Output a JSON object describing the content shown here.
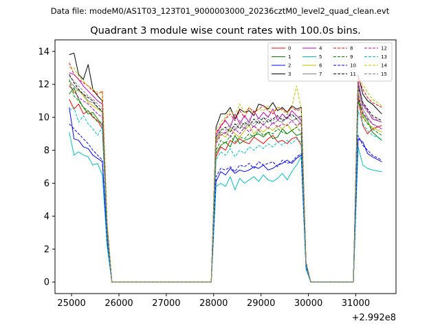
{
  "figure": {
    "suptitle": "Data file: modeM0/AS1T03_123T01_9000003000_20236cztM0_level2_quad_clean.evt"
  },
  "chart_data": {
    "type": "line",
    "title": "Quadrant 3 module wise count rates with 100.0s bins.",
    "xlabel": "",
    "ylabel": "",
    "x_offset_label": "+2.992e8",
    "xlim": [
      24650,
      31850
    ],
    "ylim": [
      -0.7,
      14.7
    ],
    "x_ticks": [
      25000,
      26000,
      27000,
      28000,
      29000,
      30000,
      31000
    ],
    "x_tick_labels": [
      "25000",
      "26000",
      "27000",
      "28000",
      "29000",
      "30000",
      "31000"
    ],
    "y_ticks": [
      0,
      2,
      4,
      6,
      8,
      10,
      12,
      14
    ],
    "y_tick_labels": [
      "0",
      "2",
      "4",
      "6",
      "8",
      "10",
      "12",
      "14"
    ],
    "grid": false,
    "legend_position": "top-right",
    "x": [
      24950,
      25050,
      25150,
      25250,
      25350,
      25450,
      25550,
      25650,
      25750,
      25850,
      27950,
      28050,
      28150,
      28250,
      28350,
      28450,
      28550,
      28650,
      28750,
      28850,
      28950,
      29050,
      29150,
      29250,
      29350,
      29450,
      29550,
      29650,
      29750,
      29850,
      29950,
      30050,
      30950,
      31050,
      31150,
      31250,
      31350,
      31550
    ],
    "series": [
      {
        "name": "0",
        "color": "#ff0000",
        "dash": false,
        "values": [
          11.1,
          10.5,
          10.8,
          10.2,
          10.4,
          10.0,
          9.8,
          9.3,
          3.0,
          0.0,
          0.0,
          7.6,
          8.2,
          8.0,
          8.6,
          8.4,
          8.7,
          8.5,
          8.4,
          8.8,
          8.6,
          8.4,
          8.7,
          8.9,
          8.5,
          8.6,
          8.4,
          8.7,
          8.8,
          8.3,
          1.0,
          0.0,
          0.0,
          11.2,
          9.5,
          9.0,
          9.3,
          9.5
        ]
      },
      {
        "name": "1",
        "color": "#008000",
        "dash": false,
        "values": [
          11.4,
          11.8,
          11.1,
          10.6,
          10.2,
          10.3,
          9.9,
          9.5,
          3.1,
          0.0,
          0.0,
          7.8,
          8.3,
          8.5,
          8.2,
          8.9,
          8.4,
          8.6,
          8.7,
          8.9,
          9.0,
          8.8,
          9.1,
          8.7,
          8.8,
          9.3,
          9.0,
          9.2,
          8.9,
          9.0,
          1.1,
          0.0,
          0.0,
          11.0,
          10.2,
          9.8,
          9.1,
          8.6
        ]
      },
      {
        "name": "2",
        "color": "#0000ff",
        "dash": false,
        "values": [
          10.6,
          8.7,
          8.6,
          8.2,
          8.1,
          7.7,
          7.5,
          7.3,
          2.5,
          0.0,
          0.0,
          6.1,
          6.7,
          6.5,
          6.9,
          6.6,
          6.8,
          6.7,
          6.8,
          7.0,
          6.9,
          7.1,
          6.8,
          6.9,
          7.1,
          7.2,
          7.4,
          7.2,
          7.5,
          7.7,
          0.9,
          0.0,
          0.0,
          8.7,
          8.5,
          7.8,
          7.6,
          7.3
        ]
      },
      {
        "name": "3",
        "color": "#000000",
        "dash": false,
        "values": [
          13.8,
          13.9,
          12.6,
          12.3,
          13.2,
          11.7,
          11.3,
          11.0,
          3.5,
          0.0,
          0.0,
          9.4,
          10.2,
          10.2,
          10.6,
          9.9,
          10.5,
          10.3,
          10.4,
          10.1,
          10.8,
          10.7,
          10.5,
          10.9,
          10.4,
          10.6,
          10.3,
          10.7,
          10.5,
          10.6,
          1.2,
          0.0,
          0.0,
          12.6,
          11.4,
          11.0,
          10.8,
          10.2
        ]
      },
      {
        "name": "4",
        "color": "#bf00bf",
        "dash": false,
        "values": [
          12.7,
          12.6,
          12.3,
          11.9,
          11.6,
          11.3,
          11.0,
          10.8,
          3.3,
          0.0,
          0.0,
          8.9,
          9.5,
          9.8,
          9.4,
          10.2,
          9.6,
          10.1,
          9.7,
          10.4,
          9.9,
          10.3,
          10.0,
          10.5,
          9.8,
          10.2,
          9.9,
          10.4,
          10.1,
          9.8,
          1.1,
          0.0,
          0.0,
          12.2,
          10.8,
          10.4,
          9.9,
          9.7
        ]
      },
      {
        "name": "5",
        "color": "#00bfbf",
        "dash": false,
        "values": [
          9.1,
          7.7,
          7.9,
          7.7,
          7.6,
          7.1,
          7.2,
          6.5,
          2.2,
          0.0,
          0.0,
          5.8,
          6.0,
          5.8,
          6.4,
          5.6,
          6.3,
          6.0,
          6.2,
          6.4,
          6.1,
          6.5,
          6.2,
          6.1,
          6.3,
          6.6,
          6.2,
          6.7,
          7.1,
          7.6,
          0.8,
          0.0,
          0.0,
          8.2,
          7.1,
          6.9,
          6.8,
          6.7
        ]
      },
      {
        "name": "6",
        "color": "#bfbf00",
        "dash": false,
        "values": [
          12.0,
          11.5,
          11.7,
          11.3,
          10.9,
          10.7,
          10.5,
          10.3,
          3.2,
          0.0,
          0.0,
          8.5,
          9.0,
          8.8,
          9.3,
          9.0,
          8.8,
          9.2,
          9.5,
          9.0,
          9.3,
          9.1,
          9.4,
          9.2,
          9.5,
          9.3,
          9.6,
          9.2,
          9.4,
          9.7,
          1.1,
          0.0,
          0.0,
          11.5,
          10.1,
          9.6,
          9.4,
          9.1
        ]
      },
      {
        "name": "7",
        "color": "#808080",
        "dash": false,
        "values": [
          12.2,
          11.9,
          11.6,
          11.4,
          11.0,
          10.9,
          10.6,
          10.3,
          3.2,
          0.0,
          0.0,
          8.6,
          9.1,
          9.0,
          9.4,
          9.2,
          9.6,
          9.3,
          9.7,
          9.4,
          9.8,
          9.5,
          9.9,
          9.6,
          9.8,
          9.7,
          10.0,
          9.8,
          9.9,
          9.6,
          1.1,
          0.0,
          0.0,
          11.8,
          10.5,
          10.0,
          9.6,
          9.3
        ]
      },
      {
        "name": "8",
        "color": "#ff0000",
        "dash": true,
        "values": [
          13.3,
          12.6,
          12.3,
          12.1,
          11.9,
          11.6,
          11.4,
          11.6,
          3.6,
          0.0,
          0.0,
          9.1,
          9.4,
          9.9,
          10.2,
          9.8,
          10.4,
          10.0,
          10.6,
          10.3,
          10.5,
          10.7,
          10.4,
          10.2,
          10.6,
          10.5,
          10.3,
          10.6,
          10.4,
          10.5,
          1.2,
          0.0,
          0.0,
          12.4,
          11.7,
          11.2,
          10.9,
          10.6
        ]
      },
      {
        "name": "9",
        "color": "#008000",
        "dash": true,
        "values": [
          12.3,
          11.3,
          11.0,
          10.6,
          10.4,
          10.1,
          9.7,
          9.7,
          3.1,
          0.0,
          0.0,
          8.0,
          8.6,
          8.4,
          8.9,
          8.5,
          8.8,
          8.7,
          9.0,
          8.8,
          9.2,
          8.9,
          9.1,
          9.0,
          9.3,
          9.1,
          9.0,
          9.2,
          9.4,
          9.1,
          1.1,
          0.0,
          0.0,
          11.3,
          10.0,
          9.6,
          9.3,
          8.9
        ]
      },
      {
        "name": "10",
        "color": "#0000ff",
        "dash": true,
        "values": [
          9.6,
          9.3,
          9.0,
          8.7,
          8.4,
          8.0,
          7.7,
          7.4,
          2.5,
          0.0,
          0.0,
          6.4,
          6.9,
          6.8,
          7.0,
          6.7,
          7.1,
          7.0,
          7.2,
          6.9,
          7.3,
          7.1,
          7.2,
          7.3,
          7.0,
          7.4,
          7.2,
          7.3,
          7.6,
          7.8,
          0.9,
          0.0,
          0.0,
          8.9,
          8.3,
          8.0,
          7.7,
          7.4
        ]
      },
      {
        "name": "11",
        "color": "#000000",
        "dash": true,
        "values": [
          12.6,
          12.1,
          11.7,
          11.4,
          11.2,
          11.0,
          10.6,
          10.4,
          3.3,
          0.0,
          0.0,
          8.8,
          9.2,
          9.4,
          9.1,
          9.6,
          9.3,
          9.7,
          9.5,
          9.9,
          9.6,
          10.0,
          9.7,
          9.9,
          10.1,
          9.8,
          10.0,
          10.2,
          9.9,
          10.1,
          1.1,
          0.0,
          0.0,
          11.9,
          10.9,
          10.5,
          10.1,
          9.8
        ]
      },
      {
        "name": "12",
        "color": "#bf00bf",
        "dash": true,
        "values": [
          11.9,
          11.6,
          11.2,
          11.0,
          10.8,
          10.5,
          10.2,
          10.0,
          3.1,
          0.0,
          0.0,
          8.4,
          8.9,
          9.1,
          8.8,
          9.3,
          9.0,
          9.4,
          9.1,
          9.5,
          9.2,
          9.6,
          9.3,
          9.7,
          9.4,
          9.6,
          9.5,
          9.8,
          9.5,
          9.7,
          1.1,
          0.0,
          0.0,
          11.4,
          10.3,
          9.9,
          9.6,
          9.3
        ]
      },
      {
        "name": "13",
        "color": "#00bfbf",
        "dash": true,
        "values": [
          10.4,
          10.6,
          9.7,
          10.1,
          9.6,
          9.3,
          8.9,
          9.4,
          2.8,
          0.0,
          0.0,
          7.4,
          7.9,
          7.7,
          8.1,
          7.6,
          8.0,
          7.8,
          8.2,
          8.0,
          8.3,
          8.1,
          8.4,
          8.2,
          8.5,
          8.3,
          8.6,
          8.4,
          8.7,
          8.5,
          1.0,
          0.0,
          0.0,
          10.4,
          9.6,
          9.2,
          8.9,
          8.7
        ]
      },
      {
        "name": "14",
        "color": "#bfbf00",
        "dash": true,
        "values": [
          13.0,
          13.0,
          12.5,
          12.2,
          11.9,
          11.7,
          11.5,
          11.5,
          3.6,
          0.0,
          0.0,
          9.2,
          9.7,
          10.0,
          10.4,
          10.1,
          10.8,
          10.3,
          10.6,
          10.2,
          10.5,
          10.4,
          10.7,
          10.3,
          10.6,
          10.4,
          10.2,
          10.6,
          11.9,
          10.5,
          1.2,
          0.0,
          0.0,
          12.2,
          12.0,
          11.5,
          11.1,
          10.7
        ]
      },
      {
        "name": "15",
        "color": "#808080",
        "dash": true,
        "values": [
          12.5,
          12.2,
          11.9,
          11.6,
          11.3,
          11.1,
          10.8,
          10.5,
          3.3,
          0.0,
          0.0,
          8.7,
          9.3,
          9.2,
          9.6,
          9.4,
          9.8,
          9.5,
          9.9,
          9.6,
          10.0,
          9.7,
          10.1,
          9.8,
          10.0,
          9.9,
          10.2,
          10.0,
          10.1,
          9.9,
          1.1,
          0.0,
          0.0,
          12.0,
          10.7,
          10.3,
          10.0,
          9.7
        ]
      }
    ]
  }
}
